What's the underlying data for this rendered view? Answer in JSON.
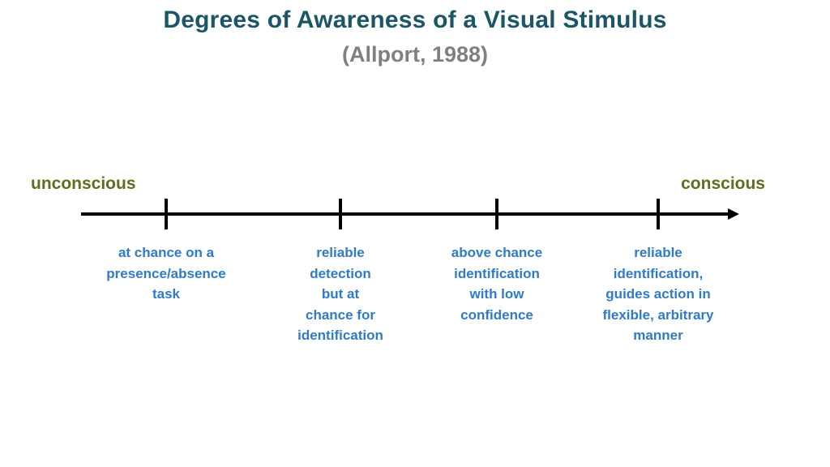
{
  "title": "Degrees of Awareness of a Visual Stimulus",
  "subtitle": "(Allport, 1988)",
  "endpoints": {
    "left": "unconscious",
    "right": "conscious"
  },
  "stages": [
    {
      "lines": [
        "at chance on a",
        "presence/absence",
        "task"
      ]
    },
    {
      "lines": [
        "reliable",
        "detection",
        "but at",
        "chance for",
        "identification"
      ]
    },
    {
      "lines": [
        "above chance",
        "identification",
        "with low",
        "confidence"
      ]
    },
    {
      "lines": [
        "reliable",
        "identification,",
        "guides action in",
        "flexible, arbitrary",
        "manner"
      ]
    }
  ],
  "colors": {
    "title": "#1b5667",
    "subtitle": "#808080",
    "endpoint": "#5e6e1e",
    "stage_text": "#2f7ac9",
    "axis": "#000000"
  }
}
